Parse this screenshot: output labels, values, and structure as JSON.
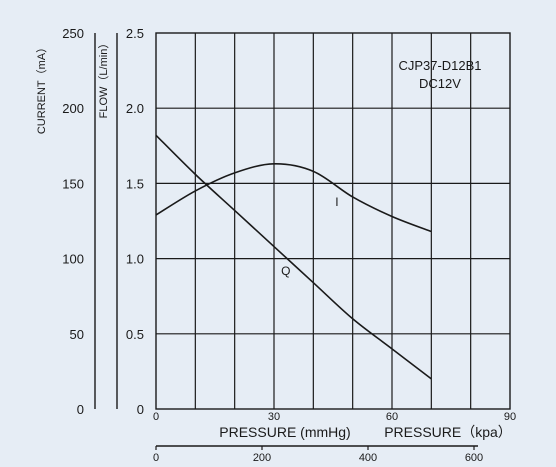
{
  "colors": {
    "background": "#e6edf5",
    "ink": "#1a1a1a"
  },
  "chart_data": {
    "type": "line",
    "annotation_lines": [
      "CJP37-D12B1",
      "DC12V"
    ],
    "x_axis_primary": {
      "label": "PRESSURE (mmHg)",
      "range": [
        0,
        90
      ],
      "ticks": [
        "0",
        "30",
        "60",
        "90"
      ],
      "tick_values": [
        0,
        30,
        60,
        90
      ],
      "grid_step": 10
    },
    "x_axis_secondary": {
      "label": "PRESSURE（kpa）",
      "ticks": [
        "0",
        "200",
        "400",
        "600"
      ]
    },
    "y_axis_flow": {
      "label": "FLOW（L/min）",
      "range": [
        0,
        2.5
      ],
      "ticks": [
        "0",
        "0.5",
        "1.0",
        "1.5",
        "2.0",
        "2.5"
      ],
      "tick_values": [
        0,
        0.5,
        1.0,
        1.5,
        2.0,
        2.5
      ]
    },
    "y_axis_current": {
      "label": "CURRENT（mA）",
      "range": [
        0,
        250
      ],
      "ticks": [
        "0",
        "50",
        "100",
        "150",
        "200",
        "250"
      ],
      "tick_values": [
        0,
        50,
        100,
        150,
        200,
        250
      ]
    },
    "grid": true,
    "series": [
      {
        "name": "Q",
        "axis": "flow",
        "x": [
          0,
          10,
          20,
          30,
          40,
          50,
          60,
          70
        ],
        "y": [
          1.82,
          1.56,
          1.32,
          1.08,
          0.84,
          0.6,
          0.4,
          0.2
        ]
      },
      {
        "name": "I",
        "axis": "current",
        "x": [
          0,
          10,
          20,
          30,
          40,
          50,
          60,
          70
        ],
        "y": [
          129,
          145,
          157,
          163,
          158,
          141,
          128,
          118
        ]
      }
    ]
  }
}
